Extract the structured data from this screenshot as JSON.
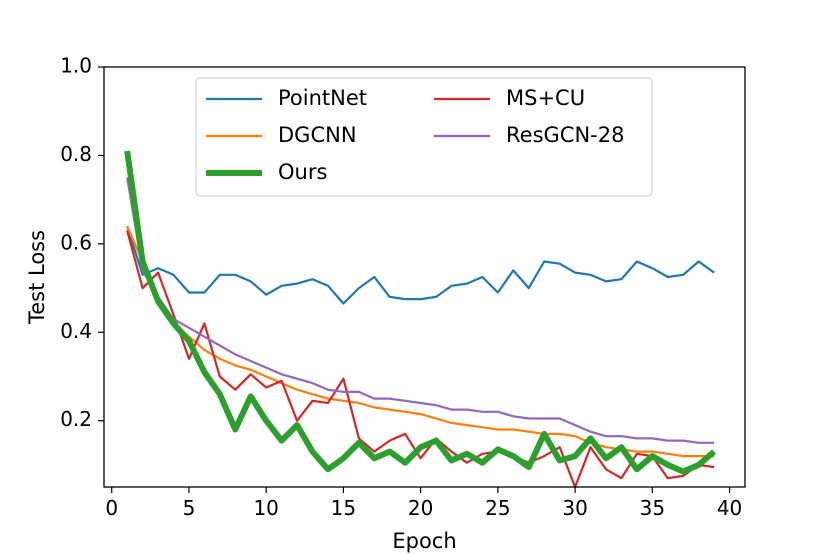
{
  "chart_data": {
    "type": "line",
    "xlabel": "Epoch",
    "ylabel": "Test Loss",
    "xlim": [
      -0.5,
      41
    ],
    "ylim": [
      0.05,
      1.0
    ],
    "xticks": [
      0,
      5,
      10,
      15,
      20,
      25,
      30,
      35,
      40
    ],
    "yticks": [
      0.2,
      0.4,
      0.6,
      0.8,
      1.0
    ],
    "xtick_labels": [
      "0",
      "5",
      "10",
      "15",
      "20",
      "25",
      "30",
      "35",
      "40"
    ],
    "ytick_labels": [
      "0.2",
      "0.4",
      "0.6",
      "0.8",
      "1.0"
    ],
    "grid": false,
    "legend_position": "top-center",
    "x": [
      1,
      2,
      3,
      4,
      5,
      6,
      7,
      8,
      9,
      10,
      11,
      12,
      13,
      14,
      15,
      16,
      17,
      18,
      19,
      20,
      21,
      22,
      23,
      24,
      25,
      26,
      27,
      28,
      29,
      30,
      31,
      32,
      33,
      34,
      35,
      36,
      37,
      38,
      39
    ],
    "series": [
      {
        "name": "PointNet",
        "color": "#1f77b4",
        "values": [
          0.64,
          0.53,
          0.545,
          0.53,
          0.49,
          0.49,
          0.53,
          0.53,
          0.515,
          0.485,
          0.505,
          0.51,
          0.52,
          0.505,
          0.465,
          0.5,
          0.525,
          0.48,
          0.475,
          0.475,
          0.48,
          0.505,
          0.51,
          0.525,
          0.49,
          0.54,
          0.5,
          0.56,
          0.555,
          0.535,
          0.53,
          0.515,
          0.52,
          0.56,
          0.545,
          0.525,
          0.53,
          0.56,
          0.535
        ]
      },
      {
        "name": "DGCNN",
        "color": "#ff7f0e",
        "values": [
          0.64,
          0.56,
          0.48,
          0.42,
          0.39,
          0.36,
          0.34,
          0.325,
          0.315,
          0.3,
          0.285,
          0.27,
          0.26,
          0.25,
          0.245,
          0.24,
          0.23,
          0.225,
          0.22,
          0.215,
          0.205,
          0.195,
          0.19,
          0.185,
          0.18,
          0.18,
          0.175,
          0.17,
          0.17,
          0.165,
          0.15,
          0.14,
          0.135,
          0.13,
          0.13,
          0.125,
          0.12,
          0.12,
          0.12
        ]
      },
      {
        "name": "Ours",
        "color": "#2ca02c",
        "values": [
          0.81,
          0.56,
          0.47,
          0.42,
          0.38,
          0.31,
          0.26,
          0.18,
          0.255,
          0.2,
          0.155,
          0.19,
          0.13,
          0.09,
          0.115,
          0.15,
          0.115,
          0.13,
          0.105,
          0.14,
          0.155,
          0.11,
          0.125,
          0.105,
          0.135,
          0.12,
          0.095,
          0.17,
          0.11,
          0.12,
          0.16,
          0.115,
          0.14,
          0.09,
          0.12,
          0.1,
          0.085,
          0.1,
          0.13
        ]
      },
      {
        "name": "MS+CU",
        "color": "#d62728",
        "values": [
          0.63,
          0.5,
          0.535,
          0.44,
          0.34,
          0.42,
          0.3,
          0.27,
          0.305,
          0.275,
          0.29,
          0.2,
          0.245,
          0.24,
          0.295,
          0.16,
          0.13,
          0.155,
          0.17,
          0.115,
          0.16,
          0.13,
          0.105,
          0.125,
          0.13,
          0.12,
          0.105,
          0.12,
          0.14,
          0.05,
          0.14,
          0.09,
          0.07,
          0.125,
          0.12,
          0.07,
          0.075,
          0.1,
          0.095
        ]
      },
      {
        "name": "ResGCN-28",
        "color": "#9467bd",
        "values": [
          0.75,
          0.54,
          0.48,
          0.43,
          0.41,
          0.39,
          0.37,
          0.35,
          0.335,
          0.32,
          0.305,
          0.295,
          0.285,
          0.27,
          0.265,
          0.265,
          0.25,
          0.25,
          0.245,
          0.24,
          0.235,
          0.225,
          0.225,
          0.22,
          0.22,
          0.21,
          0.205,
          0.205,
          0.205,
          0.19,
          0.175,
          0.165,
          0.165,
          0.16,
          0.16,
          0.155,
          0.155,
          0.15,
          0.15
        ]
      }
    ]
  }
}
